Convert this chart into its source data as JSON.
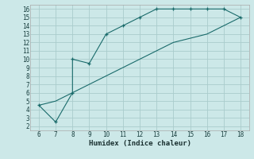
{
  "xlabel": "Humidex (Indice chaleur)",
  "bg_color": "#cce8e8",
  "grid_color": "#aacccc",
  "line_color": "#1a6b6b",
  "spine_color": "#aaaaaa",
  "xlim": [
    5.5,
    18.5
  ],
  "ylim": [
    1.5,
    16.5
  ],
  "xticks": [
    6,
    7,
    8,
    9,
    10,
    11,
    12,
    13,
    14,
    15,
    16,
    17,
    18
  ],
  "yticks": [
    2,
    3,
    4,
    5,
    6,
    7,
    8,
    9,
    10,
    11,
    12,
    13,
    14,
    15,
    16
  ],
  "line1_x": [
    6,
    7,
    8,
    8,
    9,
    10,
    11,
    12,
    13,
    14,
    15,
    16,
    17,
    18
  ],
  "line1_y": [
    4.5,
    2.5,
    6.0,
    10.0,
    9.5,
    13.0,
    14.0,
    15.0,
    16.0,
    16.0,
    16.0,
    16.0,
    16.0,
    15.0
  ],
  "line2_x": [
    6,
    7,
    8,
    9,
    10,
    11,
    12,
    13,
    14,
    15,
    16,
    17,
    18
  ],
  "line2_y": [
    4.5,
    5.0,
    6.0,
    7.0,
    8.0,
    9.0,
    10.0,
    11.0,
    12.0,
    12.5,
    13.0,
    14.0,
    15.0
  ],
  "tick_fontsize": 5.5,
  "xlabel_fontsize": 6.5
}
